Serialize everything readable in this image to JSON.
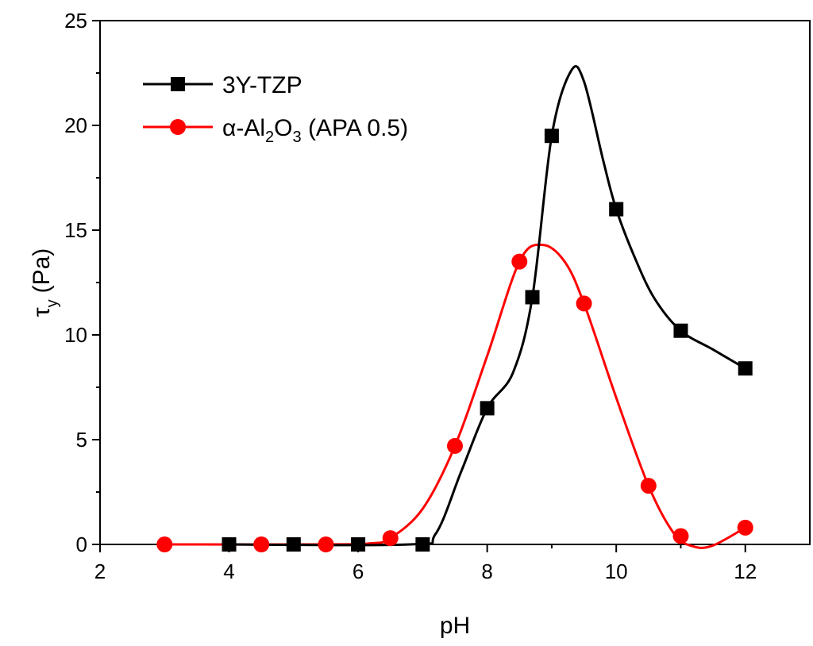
{
  "chart_data": {
    "type": "line",
    "title": "",
    "xlabel": "pH",
    "ylabel": {
      "symbol": "τ",
      "subscript": "y",
      "unit": "(Pa)"
    },
    "xlim": [
      2,
      13
    ],
    "ylim": [
      0,
      25
    ],
    "xticks": [
      2,
      4,
      6,
      8,
      10,
      12
    ],
    "yticks": [
      0,
      5,
      10,
      15,
      20,
      25
    ],
    "legend_position": "top-left",
    "series": [
      {
        "name": "3Y-TZP",
        "color": "#000000",
        "marker": "square",
        "x": [
          4,
          5,
          6,
          7,
          8,
          8.7,
          9,
          10,
          11,
          12
        ],
        "y": [
          0,
          0,
          0,
          0,
          6.5,
          11.8,
          19.5,
          16,
          10.2,
          8.4
        ]
      },
      {
        "name": "α-Al2O3 (APA 0.5)",
        "legend_parts": [
          "α-Al",
          "2",
          "O",
          "3",
          " (APA 0.5)"
        ],
        "color": "#ff0000",
        "marker": "circle",
        "x": [
          3,
          4.5,
          5.5,
          6.5,
          7.5,
          8.5,
          9.5,
          10.5,
          11,
          12
        ],
        "y": [
          0,
          0,
          0,
          0.3,
          4.7,
          13.5,
          11.5,
          2.8,
          0.4,
          0.8
        ]
      }
    ],
    "curves": {
      "3Y-TZP": [
        [
          4,
          0
        ],
        [
          6.8,
          0
        ],
        [
          7.2,
          0.5
        ],
        [
          7.6,
          3.5
        ],
        [
          8,
          6.5
        ],
        [
          8.4,
          8.2
        ],
        [
          8.7,
          11.8
        ],
        [
          9,
          19.5
        ],
        [
          9.3,
          22.6
        ],
        [
          9.5,
          22.1
        ],
        [
          9.8,
          18.3
        ],
        [
          10,
          16
        ],
        [
          10.3,
          13.6
        ],
        [
          10.6,
          11.7
        ],
        [
          11,
          10.2
        ],
        [
          11.5,
          9.3
        ],
        [
          12,
          8.4
        ]
      ],
      "α-Al2O3 (APA 0.5)": [
        [
          3,
          0
        ],
        [
          5.5,
          0
        ],
        [
          6.2,
          0.05
        ],
        [
          6.5,
          0.3
        ],
        [
          7,
          1.7
        ],
        [
          7.5,
          4.7
        ],
        [
          8,
          9.0
        ],
        [
          8.5,
          13.5
        ],
        [
          8.85,
          14.3
        ],
        [
          9.2,
          13.5
        ],
        [
          9.5,
          11.5
        ],
        [
          10,
          7.0
        ],
        [
          10.5,
          2.8
        ],
        [
          10.9,
          0.5
        ],
        [
          11.2,
          -0.1
        ],
        [
          11.5,
          -0.05
        ],
        [
          12,
          0.8
        ]
      ]
    }
  }
}
